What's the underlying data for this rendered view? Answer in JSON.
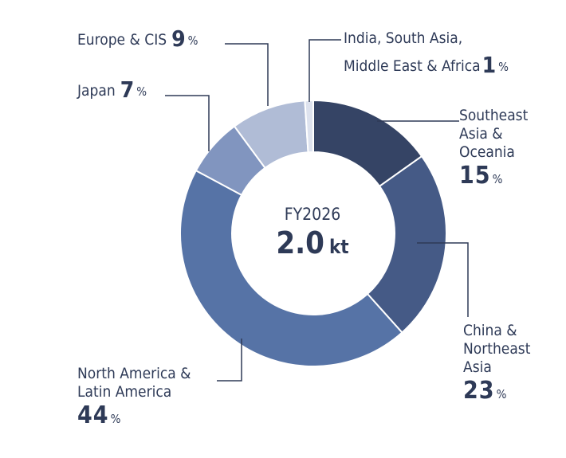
{
  "chart_data": {
    "type": "donut",
    "center": {
      "period": "FY2026",
      "total": "2.0",
      "unit": "kt"
    },
    "slices": [
      {
        "label_lines": [
          "Southeast",
          "Asia &",
          "Oceania"
        ],
        "value": 15,
        "display": "15",
        "color": "#354465"
      },
      {
        "label_lines": [
          "China &",
          "Northeast",
          "Asia"
        ],
        "value": 23,
        "display": "23",
        "color": "#455a86"
      },
      {
        "label_lines": [
          "North America &",
          "Latin America"
        ],
        "value": 44,
        "display": "44",
        "color": "#5673a6"
      },
      {
        "label_lines": [
          "Japan"
        ],
        "value": 7,
        "display": "7",
        "color": "#8195bf"
      },
      {
        "label_lines": [
          "Europe & CIS"
        ],
        "value": 9,
        "display": "9",
        "color": "#b0bcd6"
      },
      {
        "label_lines": [
          "India, South Asia,",
          "Middle East & Africa"
        ],
        "value": 1,
        "display": "1",
        "color": "#dde2ee"
      }
    ],
    "unit_symbol": "%"
  }
}
